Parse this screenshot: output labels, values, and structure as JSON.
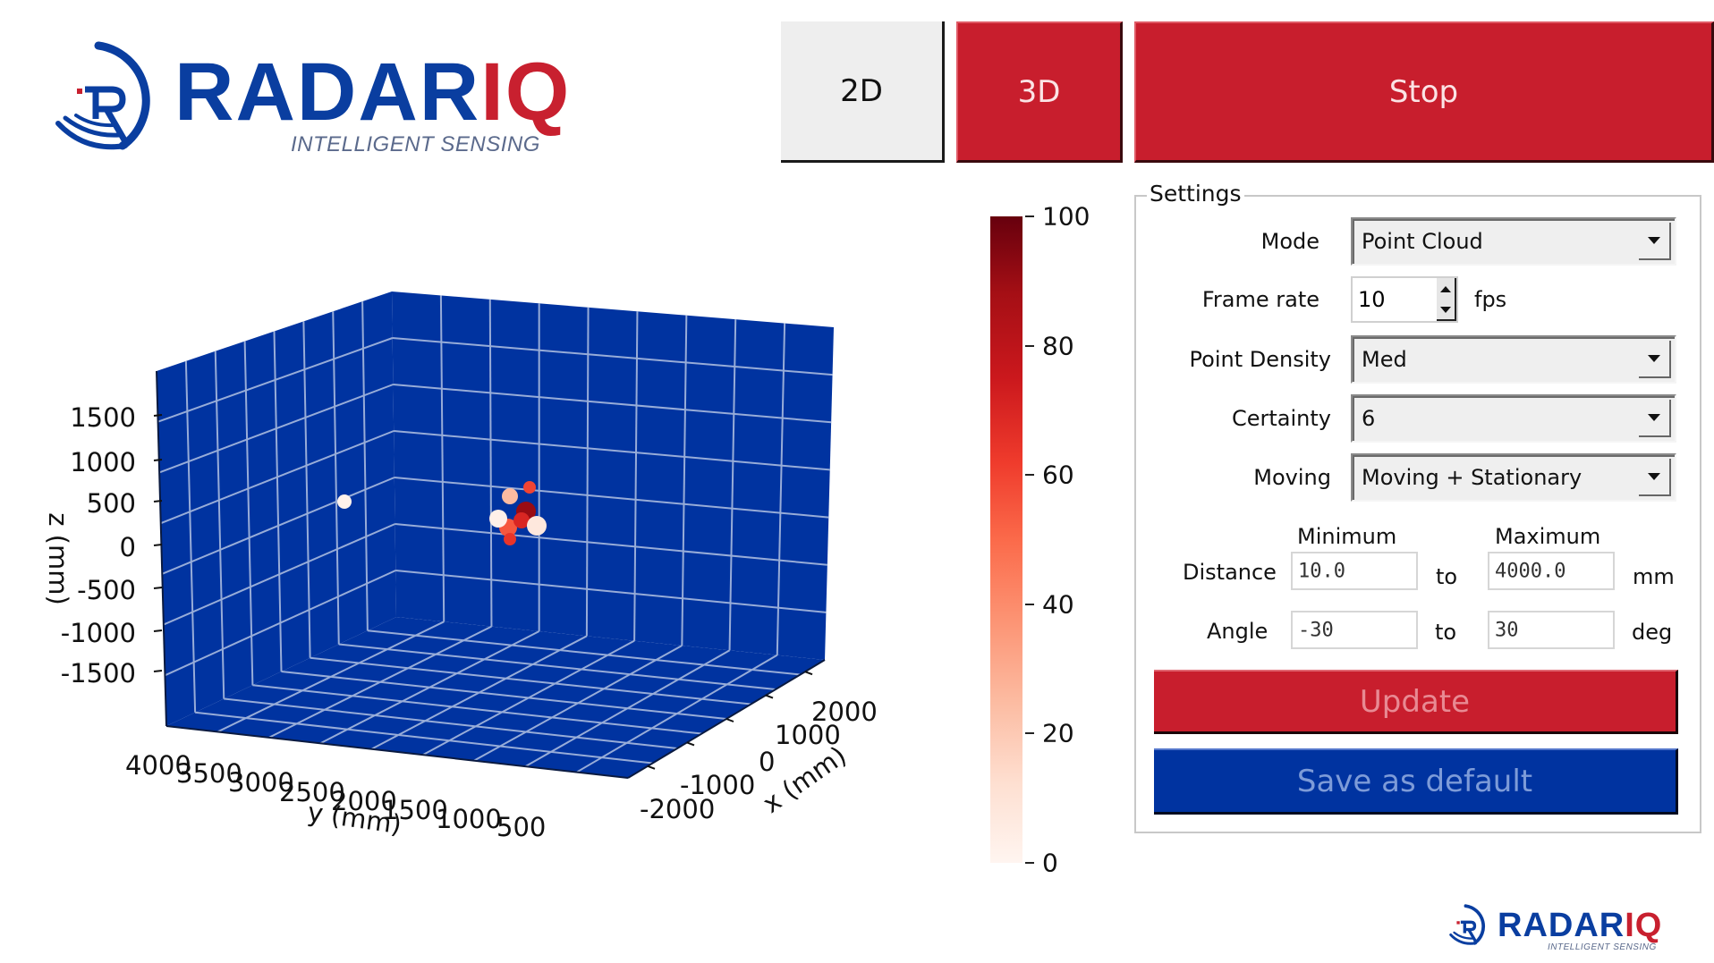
{
  "logo": {
    "brand_main": "RADAR",
    "brand_accent": "IQ",
    "tagline": "INTELLIGENT SENSING",
    "colors": {
      "blue": "#0a3ea0",
      "red": "#c8202f"
    }
  },
  "footer_logo": {
    "brand_main": "RADAR",
    "brand_accent": "IQ",
    "tagline": "INTELLIGENT SENSING"
  },
  "toolbar": {
    "btn_2d": "2D",
    "btn_3d": "3D",
    "btn_stop": "Stop",
    "active_view": "3D"
  },
  "colors": {
    "accent_red": "#c81e2d",
    "accent_blue": "#0033a0",
    "plot_pane": "#0033a0",
    "grid": "#9fb3dd"
  },
  "settings": {
    "title": "Settings",
    "mode": {
      "label": "Mode",
      "value": "Point Cloud"
    },
    "frame_rate": {
      "label": "Frame rate",
      "value": "10",
      "unit": "fps"
    },
    "point_density": {
      "label": "Point Density",
      "value": "Med"
    },
    "certainty": {
      "label": "Certainty",
      "value": "6"
    },
    "moving": {
      "label": "Moving",
      "value": "Moving + Stationary"
    },
    "range_headers": {
      "min": "Minimum",
      "max": "Maximum"
    },
    "distance": {
      "label": "Distance",
      "min": "10.0",
      "to": "to",
      "max": "4000.0",
      "unit": "mm"
    },
    "angle": {
      "label": "Angle",
      "min": "-30",
      "to": "to",
      "max": "30",
      "unit": "deg"
    },
    "update_label": "Update",
    "save_label": "Save as default"
  },
  "chart_data": {
    "type": "scatter3d",
    "title": "",
    "xlabel": "x (mm)",
    "ylabel": "y (mm)",
    "zlabel": "z (mm)",
    "xlim": [
      -2000,
      2000
    ],
    "ylim": [
      0,
      4000
    ],
    "zlim": [
      -1750,
      1750
    ],
    "x_ticks": [
      "-2000",
      "-1000",
      "0",
      "1000",
      "2000"
    ],
    "y_ticks": [
      "4000",
      "3500",
      "3000",
      "2500",
      "2000",
      "1500",
      "1000",
      "500"
    ],
    "z_ticks": [
      "1500",
      "1000",
      "500",
      "0",
      "-500",
      "-1000",
      "-1500"
    ],
    "grid": true,
    "pane_color": "#0033a0",
    "colormap": "Reds",
    "colorbar": {
      "min": 0,
      "max": 100,
      "ticks": [
        "100",
        "80",
        "60",
        "40",
        "20",
        "0"
      ]
    },
    "points_screen": [
      {
        "sx": 385,
        "sy": 561,
        "r": 8,
        "intensity": 2
      },
      {
        "sx": 592,
        "sy": 545,
        "r": 7,
        "intensity": 60
      },
      {
        "sx": 570,
        "sy": 555,
        "r": 9,
        "intensity": 25
      },
      {
        "sx": 588,
        "sy": 572,
        "r": 11,
        "intensity": 90
      },
      {
        "sx": 568,
        "sy": 590,
        "r": 10,
        "intensity": 55
      },
      {
        "sx": 583,
        "sy": 582,
        "r": 9,
        "intensity": 70
      },
      {
        "sx": 557,
        "sy": 580,
        "r": 10,
        "intensity": 3
      },
      {
        "sx": 600,
        "sy": 588,
        "r": 11,
        "intensity": 8
      },
      {
        "sx": 570,
        "sy": 603,
        "r": 7,
        "intensity": 65
      }
    ]
  }
}
